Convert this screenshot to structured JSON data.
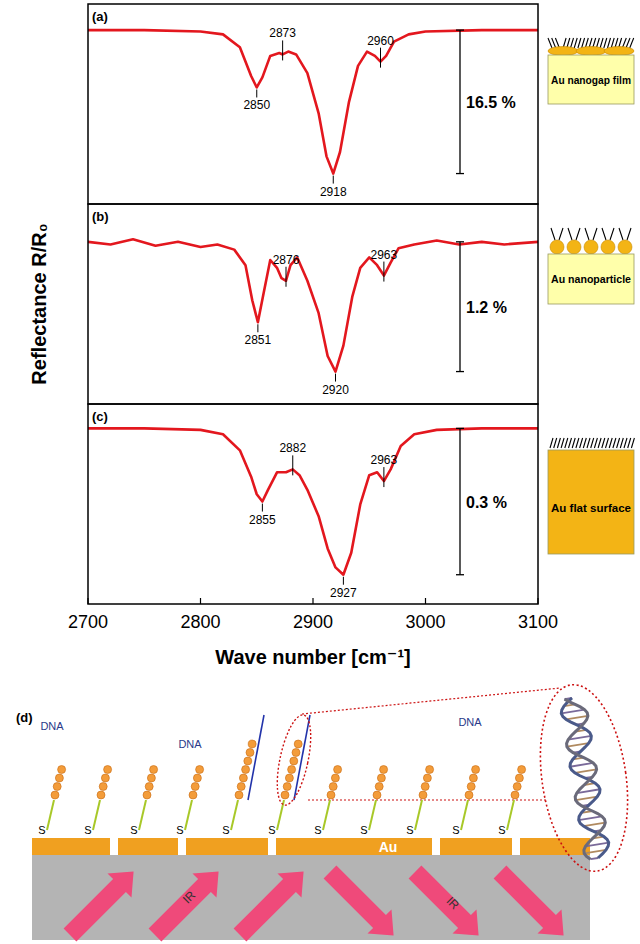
{
  "chart_data": [
    {
      "type": "line",
      "panel_label": "(a)",
      "schematic_label": "Au nanogap film",
      "xlim": [
        2700,
        3100
      ],
      "ylim": [
        80,
        103
      ],
      "tick_labels": false,
      "x": [
        2700,
        2750,
        2800,
        2820,
        2835,
        2845,
        2850,
        2855,
        2862,
        2870,
        2873,
        2878,
        2885,
        2895,
        2905,
        2912,
        2918,
        2924,
        2932,
        2940,
        2948,
        2955,
        2960,
        2965,
        2972,
        2985,
        3000,
        3050,
        3100
      ],
      "series": [
        {
          "color": "#e3171e",
          "values": [
            100,
            100,
            99.84,
            99.51,
            98.02,
            94.72,
            93.4,
            94.56,
            97.03,
            97.36,
            97.2,
            97.53,
            97.2,
            95.05,
            90.43,
            85.48,
            83.5,
            85.98,
            91.75,
            95.88,
            97.53,
            97.03,
            96.37,
            97.03,
            98.68,
            99.51,
            99.84,
            100,
            100
          ]
        }
      ],
      "annotations": [
        {
          "text": "2850",
          "x": 2850,
          "y": 93.4
        },
        {
          "text": "2873",
          "x": 2873,
          "y": 97.2
        },
        {
          "text": "2918",
          "x": 2918,
          "y": 83.5
        },
        {
          "text": "2960",
          "x": 2960,
          "y": 96.37
        }
      ],
      "depth": {
        "value": 16.5,
        "label": "16.5 %",
        "baseline": 100
      }
    },
    {
      "type": "line",
      "panel_label": "(b)",
      "schematic_label": "Au nanoparticle",
      "y_label": "Reflectance R/R₀",
      "xlim": [
        2700,
        3100
      ],
      "ylim": [
        98.5,
        100.35
      ],
      "tick_labels": false,
      "x": [
        2700,
        2720,
        2740,
        2760,
        2780,
        2800,
        2815,
        2830,
        2840,
        2846,
        2851,
        2856,
        2862,
        2868,
        2872,
        2876,
        2880,
        2886,
        2895,
        2905,
        2913,
        2920,
        2927,
        2935,
        2942,
        2950,
        2957,
        2963,
        2969,
        2976,
        2990,
        3010,
        3030,
        3050,
        3070,
        3100
      ],
      "series": [
        {
          "color": "#e3171e",
          "values": [
            100,
            99.976,
            100.024,
            99.964,
            100,
            99.952,
            99.976,
            99.928,
            99.784,
            99.46,
            99.256,
            99.52,
            99.832,
            99.76,
            99.664,
            99.64,
            99.784,
            99.856,
            99.64,
            99.34,
            98.944,
            98.8,
            99.04,
            99.496,
            99.76,
            99.856,
            99.784,
            99.688,
            99.808,
            99.94,
            99.976,
            100.012,
            99.976,
            100,
            99.976,
            100
          ]
        }
      ],
      "annotations": [
        {
          "text": "2851",
          "x": 2851,
          "y": 99.256
        },
        {
          "text": "2876",
          "x": 2876,
          "y": 99.64
        },
        {
          "text": "2920",
          "x": 2920,
          "y": 98.8
        },
        {
          "text": "2963",
          "x": 2963,
          "y": 99.688
        }
      ],
      "depth": {
        "value": 1.2,
        "label": "1.2 %",
        "baseline": 100
      }
    },
    {
      "type": "line",
      "panel_label": "(c)",
      "schematic_label": "Au flat surface",
      "x_label": "Wave number [cm⁻¹]",
      "xlim": [
        2700,
        3100
      ],
      "xticks": [
        2700,
        2800,
        2900,
        3000,
        3100
      ],
      "ylim": [
        99.64,
        100.05
      ],
      "tick_labels": "x",
      "x": [
        2700,
        2750,
        2800,
        2820,
        2835,
        2845,
        2850,
        2855,
        2860,
        2868,
        2876,
        2882,
        2888,
        2895,
        2905,
        2913,
        2920,
        2927,
        2934,
        2942,
        2950,
        2957,
        2963,
        2969,
        2978,
        2990,
        3010,
        3050,
        3100
      ],
      "series": [
        {
          "color": "#e3171e",
          "values": [
            100,
            100,
            99.997,
            99.988,
            99.955,
            99.901,
            99.865,
            99.85,
            99.874,
            99.91,
            99.91,
            99.916,
            99.904,
            99.874,
            99.82,
            99.754,
            99.715,
            99.7,
            99.745,
            99.844,
            99.904,
            99.91,
            99.892,
            99.916,
            99.964,
            99.988,
            99.997,
            100,
            100
          ]
        }
      ],
      "annotations": [
        {
          "text": "2855",
          "x": 2855,
          "y": 99.85
        },
        {
          "text": "2882",
          "x": 2882,
          "y": 99.916
        },
        {
          "text": "2927",
          "x": 2927,
          "y": 99.7
        },
        {
          "text": "2963",
          "x": 2963,
          "y": 99.892
        }
      ],
      "depth": {
        "value": 0.3,
        "label": "0.3 %",
        "baseline": 100
      }
    }
  ],
  "panel_d": {
    "label": "(d)",
    "dna_labels": [
      "DNA",
      "DNA",
      "DNA"
    ],
    "s_labels": [
      "S",
      "S",
      "S",
      "S",
      "S",
      "S",
      "S",
      "S",
      "S",
      "S",
      "S"
    ],
    "au_label": "Au",
    "ir_labels": [
      "IR",
      "IR"
    ]
  }
}
